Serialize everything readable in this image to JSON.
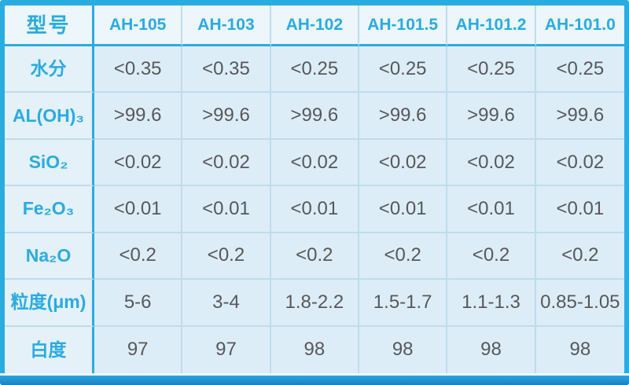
{
  "colors": {
    "accent_cyan": "#29ABE2",
    "frame_cyan": "#2BACDF",
    "header_bg": "#EDF6FB",
    "label_bg": "#E4F1F9",
    "cell_bg": "#DDEDF7",
    "grid_line": "#BEDCEC",
    "data_text": "#57585A",
    "bottom_bar_blue": "#1C80C1"
  },
  "table": {
    "header": [
      "型号",
      "AH-105",
      "AH-103",
      "AH-102",
      "AH-101.5",
      "AH-101.2",
      "AH-101.0"
    ],
    "rows": [
      {
        "label": "水分",
        "values": [
          "<0.35",
          "<0.35",
          "<0.25",
          "<0.25",
          "<0.25",
          "<0.25"
        ]
      },
      {
        "label": "AL(OH)₃",
        "values": [
          ">99.6",
          ">99.6",
          ">99.6",
          ">99.6",
          ">99.6",
          ">99.6"
        ]
      },
      {
        "label": "SiO₂",
        "values": [
          "<0.02",
          "<0.02",
          "<0.02",
          "<0.02",
          "<0.02",
          "<0.02"
        ]
      },
      {
        "label": "Fe₂O₃",
        "values": [
          "<0.01",
          "<0.01",
          "<0.01",
          "<0.01",
          "<0.01",
          "<0.01"
        ]
      },
      {
        "label": "Na₂O",
        "values": [
          "<0.2",
          "<0.2",
          "<0.2",
          "<0.2",
          "<0.2",
          "<0.2"
        ]
      },
      {
        "label": "粒度(μm)",
        "values": [
          "5-6",
          "3-4",
          "1.8-2.2",
          "1.5-1.7",
          "1.1-1.3",
          "0.85-1.05"
        ]
      },
      {
        "label": "白度",
        "values": [
          "97",
          "97",
          "98",
          "98",
          "98",
          "98"
        ]
      }
    ]
  },
  "chart_data": {
    "type": "table",
    "title": "",
    "columns": [
      "型号",
      "AH-105",
      "AH-103",
      "AH-102",
      "AH-101.5",
      "AH-101.2",
      "AH-101.0"
    ],
    "rows": [
      [
        "水分",
        "<0.35",
        "<0.35",
        "<0.25",
        "<0.25",
        "<0.25",
        "<0.25"
      ],
      [
        "AL(OH)₃",
        ">99.6",
        ">99.6",
        ">99.6",
        ">99.6",
        ">99.6",
        ">99.6"
      ],
      [
        "SiO₂",
        "<0.02",
        "<0.02",
        "<0.02",
        "<0.02",
        "<0.02",
        "<0.02"
      ],
      [
        "Fe₂O₃",
        "<0.01",
        "<0.01",
        "<0.01",
        "<0.01",
        "<0.01",
        "<0.01"
      ],
      [
        "Na₂O",
        "<0.2",
        "<0.2",
        "<0.2",
        "<0.2",
        "<0.2",
        "<0.2"
      ],
      [
        "粒度(μm)",
        "5-6",
        "3-4",
        "1.8-2.2",
        "1.5-1.7",
        "1.1-1.3",
        "0.85-1.05"
      ],
      [
        "白度",
        "97",
        "97",
        "98",
        "98",
        "98",
        "98"
      ]
    ]
  }
}
